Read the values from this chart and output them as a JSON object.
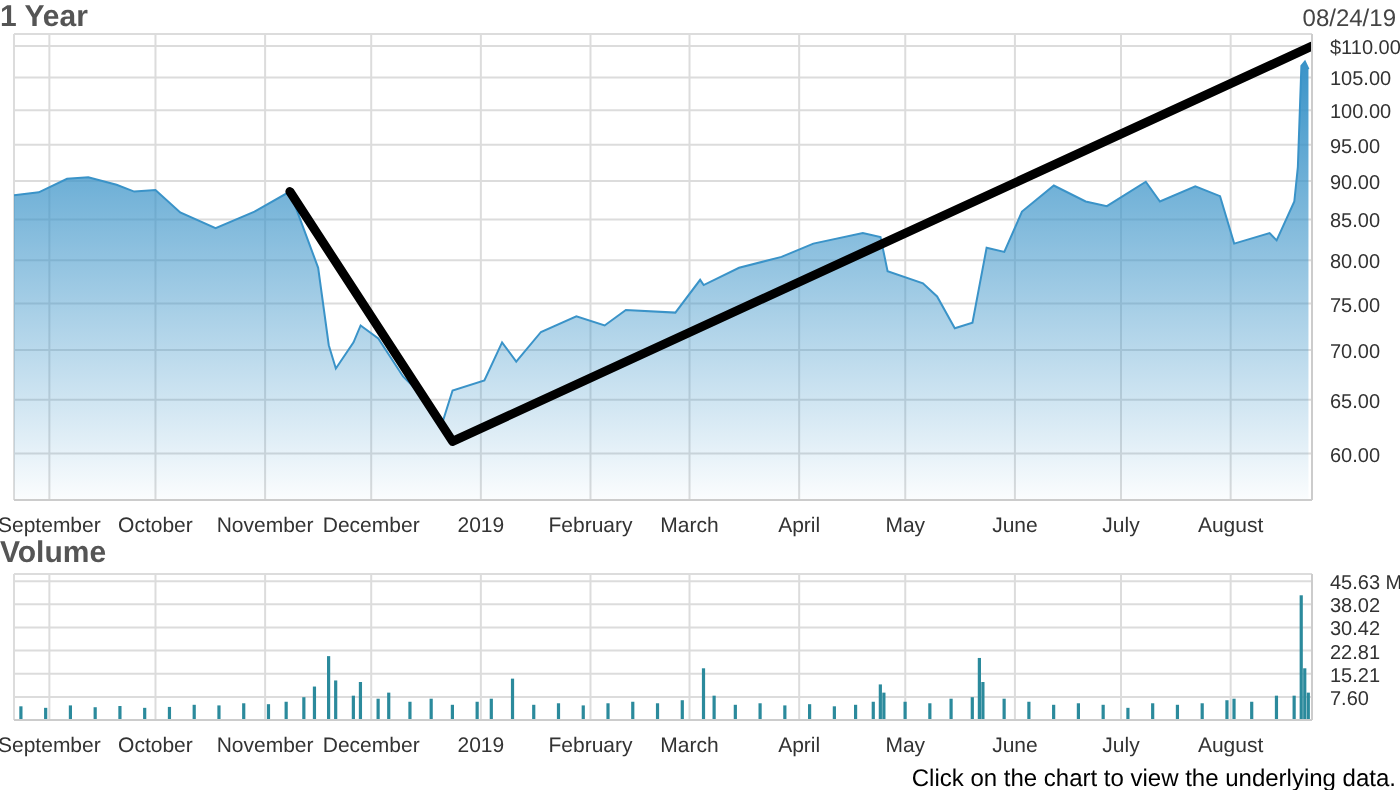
{
  "chart_data": [
    {
      "type": "area",
      "title": "1 Year",
      "annotations": [
        "08/24/19"
      ],
      "log": true,
      "grid": true,
      "xlim": [
        "2018-08-22",
        "2019-08-24"
      ],
      "xticks": [
        {
          "value": "2018-09-01",
          "label": "September"
        },
        {
          "value": "2018-10-01",
          "label": "October"
        },
        {
          "value": "2018-11-01",
          "label": "November"
        },
        {
          "value": "2018-12-01",
          "label": "December"
        },
        {
          "value": "2019-01-01",
          "label": "2019"
        },
        {
          "value": "2019-02-01",
          "label": "February"
        },
        {
          "value": "2019-03-01",
          "label": "March"
        },
        {
          "value": "2019-04-01",
          "label": "April"
        },
        {
          "value": "2019-05-01",
          "label": "May"
        },
        {
          "value": "2019-06-01",
          "label": "June"
        },
        {
          "value": "2019-07-01",
          "label": "July"
        },
        {
          "value": "2019-08-01",
          "label": "August"
        }
      ],
      "ylim": [
        56,
        112
      ],
      "yticks": [
        {
          "value": 60,
          "label": "60.00"
        },
        {
          "value": 65,
          "label": "65.00"
        },
        {
          "value": 70,
          "label": "70.00"
        },
        {
          "value": 75,
          "label": "75.00"
        },
        {
          "value": 80,
          "label": "80.00"
        },
        {
          "value": 85,
          "label": "85.00"
        },
        {
          "value": 90,
          "label": "90.00"
        },
        {
          "value": 95,
          "label": "95.00"
        },
        {
          "value": 100,
          "label": "100.00"
        },
        {
          "value": 105,
          "label": "105.00"
        },
        {
          "value": 110,
          "label": "$110.00"
        }
      ],
      "series": [
        {
          "color": "#3a93c8",
          "x": [
            "2018-08-22",
            "2018-08-29",
            "2018-09-06",
            "2018-09-12",
            "2018-09-20",
            "2018-09-25",
            "2018-10-01",
            "2018-10-08",
            "2018-10-18",
            "2018-10-29",
            "2018-11-08",
            "2018-11-16",
            "2018-11-19",
            "2018-11-21",
            "2018-11-26",
            "2018-11-28",
            "2018-12-03",
            "2018-12-10",
            "2018-12-14",
            "2018-12-21",
            "2018-12-24",
            "2019-01-02",
            "2019-01-07",
            "2019-01-11",
            "2019-01-18",
            "2019-01-28",
            "2019-02-05",
            "2019-02-11",
            "2019-02-25",
            "2019-03-04",
            "2019-03-05",
            "2019-03-15",
            "2019-03-27",
            "2019-04-05",
            "2019-04-19",
            "2019-04-24",
            "2019-04-26",
            "2019-05-06",
            "2019-05-10",
            "2019-05-15",
            "2019-05-20",
            "2019-05-24",
            "2019-05-29",
            "2019-06-03",
            "2019-06-12",
            "2019-06-21",
            "2019-06-27",
            "2019-07-08",
            "2019-07-12",
            "2019-07-22",
            "2019-07-29",
            "2019-08-02",
            "2019-08-12",
            "2019-08-14",
            "2019-08-19",
            "2019-08-20",
            "2019-08-21",
            "2019-08-22",
            "2019-08-23"
          ],
          "values": [
            88.1,
            88.5,
            90.3,
            90.5,
            89.5,
            88.6,
            88.8,
            85.9,
            83.9,
            86.0,
            88.6,
            79.1,
            70.5,
            68.1,
            70.8,
            72.6,
            71.2,
            67.3,
            65.9,
            62.7,
            65.9,
            66.9,
            70.8,
            68.8,
            71.9,
            73.6,
            72.6,
            74.3,
            74.0,
            77.7,
            77.1,
            79.1,
            80.4,
            82.0,
            83.3,
            82.8,
            78.7,
            77.3,
            75.8,
            72.3,
            72.9,
            81.5,
            81.0,
            86.0,
            89.4,
            87.3,
            86.7,
            89.9,
            87.3,
            89.3,
            88.0,
            82.0,
            83.3,
            82.4,
            87.3,
            91.9,
            106.8,
            107.5,
            106.3
          ]
        },
        {
          "type": "line",
          "color": "#000000",
          "x": [
            "2018-11-08",
            "2018-12-24",
            "2019-08-24"
          ],
          "values": [
            88.6,
            61.1,
            110
          ]
        }
      ]
    },
    {
      "type": "bar",
      "title": "Volume",
      "annotations": [
        "Click on the chart to view the underlying data."
      ],
      "grid": true,
      "xlim": [
        "2018-08-22",
        "2019-08-24"
      ],
      "xticks": [
        {
          "value": "2018-09-01",
          "label": "September"
        },
        {
          "value": "2018-10-01",
          "label": "October"
        },
        {
          "value": "2018-11-01",
          "label": "November"
        },
        {
          "value": "2018-12-01",
          "label": "December"
        },
        {
          "value": "2019-01-01",
          "label": "2019"
        },
        {
          "value": "2019-02-01",
          "label": "February"
        },
        {
          "value": "2019-03-01",
          "label": "March"
        },
        {
          "value": "2019-04-01",
          "label": "April"
        },
        {
          "value": "2019-05-01",
          "label": "May"
        },
        {
          "value": "2019-06-01",
          "label": "June"
        },
        {
          "value": "2019-07-01",
          "label": "July"
        },
        {
          "value": "2019-08-01",
          "label": "August"
        }
      ],
      "ylim": [
        0,
        48
      ],
      "yticks": [
        {
          "value": 7.6,
          "label": "7.60"
        },
        {
          "value": 15.21,
          "label": "15.21"
        },
        {
          "value": 22.81,
          "label": "22.81"
        },
        {
          "value": 30.42,
          "label": "30.42"
        },
        {
          "value": 38.02,
          "label": "38.02"
        },
        {
          "value": 45.63,
          "label": "45.63 M"
        }
      ],
      "series": [
        {
          "color": "#2b8a9c",
          "x": [
            "2018-08-24",
            "2018-08-31",
            "2018-09-07",
            "2018-09-14",
            "2018-09-21",
            "2018-09-28",
            "2018-10-05",
            "2018-10-12",
            "2018-10-19",
            "2018-10-26",
            "2018-11-02",
            "2018-11-07",
            "2018-11-12",
            "2018-11-15",
            "2018-11-19",
            "2018-11-21",
            "2018-11-26",
            "2018-11-28",
            "2018-12-03",
            "2018-12-06",
            "2018-12-12",
            "2018-12-18",
            "2018-12-24",
            "2018-12-31",
            "2019-01-04",
            "2019-01-10",
            "2019-01-16",
            "2019-01-23",
            "2019-01-30",
            "2019-02-06",
            "2019-02-13",
            "2019-02-20",
            "2019-02-27",
            "2019-03-05",
            "2019-03-08",
            "2019-03-14",
            "2019-03-21",
            "2019-03-28",
            "2019-04-04",
            "2019-04-11",
            "2019-04-17",
            "2019-04-22",
            "2019-04-24",
            "2019-04-25",
            "2019-05-01",
            "2019-05-08",
            "2019-05-14",
            "2019-05-20",
            "2019-05-22",
            "2019-05-23",
            "2019-05-29",
            "2019-06-05",
            "2019-06-12",
            "2019-06-19",
            "2019-06-26",
            "2019-07-03",
            "2019-07-10",
            "2019-07-17",
            "2019-07-24",
            "2019-07-31",
            "2019-08-02",
            "2019-08-07",
            "2019-08-14",
            "2019-08-19",
            "2019-08-21",
            "2019-08-22",
            "2019-08-23"
          ],
          "values": [
            4.5,
            4.0,
            4.8,
            4.2,
            4.6,
            4.0,
            4.3,
            5.0,
            4.8,
            5.5,
            5.2,
            6.0,
            7.5,
            11,
            21,
            13,
            8,
            12.5,
            7,
            9,
            6,
            7,
            5,
            6,
            7,
            13.6,
            5,
            5.5,
            4.8,
            5.5,
            6,
            5.5,
            6.5,
            17,
            8,
            5,
            5.5,
            4.8,
            5.2,
            4.5,
            5,
            6,
            11.7,
            9,
            6,
            5.5,
            7,
            7.5,
            20.4,
            12.5,
            7,
            6,
            5,
            5.5,
            5,
            4,
            5.5,
            5,
            5.5,
            6.5,
            7,
            6,
            8,
            8,
            41,
            17,
            9
          ]
        }
      ]
    }
  ]
}
